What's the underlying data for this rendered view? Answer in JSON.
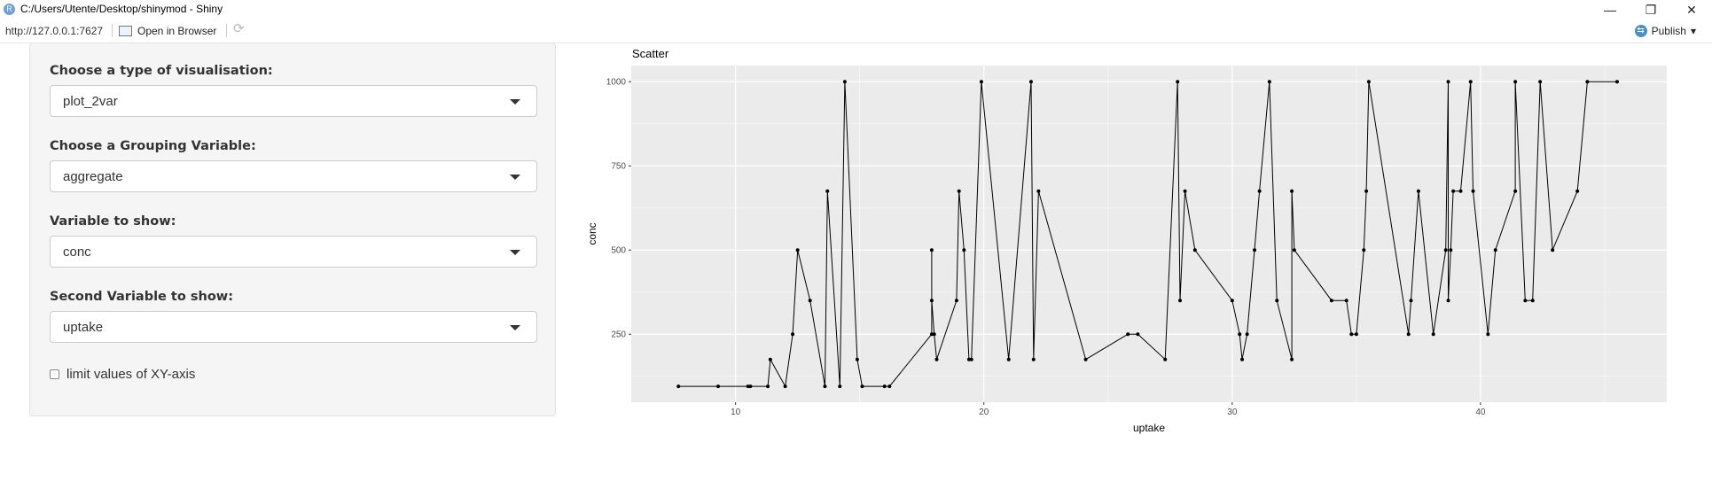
{
  "window": {
    "title": "C:/Users/Utente/Desktop/shinymod - Shiny",
    "minimize_glyph": "—",
    "restore_glyph": "❐",
    "close_glyph": "✕"
  },
  "toolbar": {
    "url": "http://127.0.0.1:7627",
    "open_in_browser": "Open in Browser",
    "publish": "Publish",
    "publish_caret": "▾"
  },
  "sidebar": {
    "visualisation": {
      "label": "Choose a type of visualisation:",
      "value": "plot_2var"
    },
    "grouping": {
      "label": "Choose a Grouping Variable:",
      "value": "aggregate"
    },
    "variable": {
      "label": "Variable to show:",
      "value": "conc"
    },
    "second_variable": {
      "label": "Second Variable to show:",
      "value": "uptake"
    },
    "limit_checkbox": {
      "label": "limit values of XY-axis",
      "checked": false
    }
  },
  "colors": {
    "panel_bg": "#ebebeb",
    "grid_major": "#ffffff",
    "line": "#000000"
  },
  "chart_data": {
    "type": "line",
    "title": "Scatter",
    "xlabel": "uptake",
    "ylabel": "conc",
    "xlim": [
      5.8,
      47.5
    ],
    "ylim": [
      48,
      1048
    ],
    "xticks": [
      10,
      20,
      30,
      40
    ],
    "yticks": [
      250,
      500,
      750,
      1000
    ],
    "grid": true,
    "series": [
      {
        "x": [
          7.7,
          9.3,
          10.5,
          10.6,
          11.3,
          11.4,
          12.0,
          12.3,
          12.5,
          13.0,
          13.6,
          13.7,
          14.2,
          14.4,
          14.9,
          15.1,
          16.0,
          16.2,
          17.9,
          17.9,
          17.9,
          18.0,
          18.1,
          18.9,
          19.0,
          19.2,
          19.4,
          19.5,
          19.9,
          21.0,
          21.9,
          22.0,
          22.2,
          24.1,
          25.8,
          26.2,
          27.3,
          27.8,
          27.9,
          28.1,
          28.5,
          30.0,
          30.3,
          30.4,
          30.6,
          30.9,
          31.1,
          31.5,
          31.8,
          32.4,
          32.4,
          32.5,
          34.0,
          34.6,
          34.8,
          35.0,
          35.3,
          35.4,
          35.5,
          37.1,
          37.2,
          37.5,
          38.1,
          38.6,
          38.7,
          38.7,
          38.8,
          38.9,
          39.2,
          39.6,
          39.7,
          40.3,
          40.6,
          41.4,
          41.4,
          41.8,
          42.1,
          42.4,
          42.9,
          43.9,
          44.3,
          45.5
        ],
        "y": [
          95,
          95,
          95,
          95,
          95,
          175,
          95,
          250,
          500,
          350,
          95,
          675,
          95,
          1000,
          175,
          95,
          95,
          95,
          250,
          500,
          350,
          250,
          175,
          350,
          675,
          500,
          175,
          175,
          1000,
          175,
          1000,
          175,
          675,
          175,
          250,
          250,
          175,
          1000,
          350,
          675,
          500,
          350,
          250,
          175,
          250,
          500,
          675,
          1000,
          350,
          175,
          675,
          500,
          350,
          350,
          250,
          250,
          500,
          675,
          1000,
          250,
          350,
          675,
          250,
          500,
          1000,
          350,
          500,
          675,
          675,
          1000,
          675,
          250,
          500,
          675,
          1000,
          350,
          350,
          1000,
          500,
          675,
          1000,
          1000
        ]
      }
    ]
  }
}
